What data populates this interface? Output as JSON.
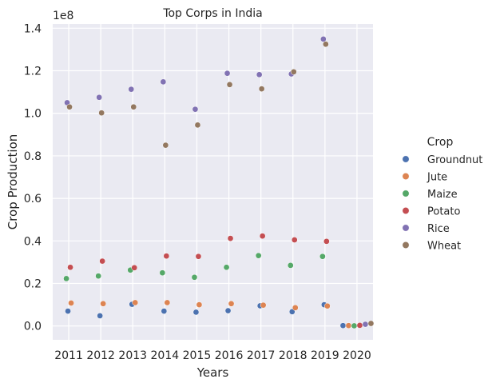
{
  "chart_data": {
    "type": "scatter",
    "title": "Top Corps in India",
    "xlabel": "Years",
    "ylabel": "Crop Production",
    "offset_label": "1e8",
    "categories": [
      "2011",
      "2012",
      "2013",
      "2014",
      "2015",
      "2016",
      "2017",
      "2018",
      "2019",
      "2020"
    ],
    "ylim": [
      -6500000,
      142000000
    ],
    "yticks": [
      0,
      20000000,
      40000000,
      60000000,
      80000000,
      100000000,
      120000000,
      140000000
    ],
    "ytick_labels": [
      "0.0",
      "0.2",
      "0.4",
      "0.6",
      "0.8",
      "1.0",
      "1.2",
      "1.4"
    ],
    "grid": true,
    "legend_title": "Crop",
    "legend_position": "right",
    "series": [
      {
        "name": "Groundnut",
        "color": "#4c72b0",
        "points": [
          {
            "x": "2011",
            "y": 7000000
          },
          {
            "x": "2012",
            "y": 4800000
          },
          {
            "x": "2013",
            "y": 10200000
          },
          {
            "x": "2014",
            "y": 7000000
          },
          {
            "x": "2015",
            "y": 6500000
          },
          {
            "x": "2016",
            "y": 7200000
          },
          {
            "x": "2017",
            "y": 9500000
          },
          {
            "x": "2018",
            "y": 6700000
          },
          {
            "x": "2019",
            "y": 10000000
          },
          {
            "x": "2020",
            "y": 200000
          }
        ]
      },
      {
        "name": "Jute",
        "color": "#dd8452",
        "points": [
          {
            "x": "2011",
            "y": 10800000
          },
          {
            "x": "2012",
            "y": 10500000
          },
          {
            "x": "2013",
            "y": 11000000
          },
          {
            "x": "2014",
            "y": 11000000
          },
          {
            "x": "2015",
            "y": 10000000
          },
          {
            "x": "2016",
            "y": 10500000
          },
          {
            "x": "2017",
            "y": 9800000
          },
          {
            "x": "2018",
            "y": 8600000
          },
          {
            "x": "2019",
            "y": 9400000
          },
          {
            "x": "2020",
            "y": 200000
          }
        ]
      },
      {
        "name": "Maize",
        "color": "#55a868",
        "points": [
          {
            "x": "2011",
            "y": 22300000
          },
          {
            "x": "2012",
            "y": 23500000
          },
          {
            "x": "2013",
            "y": 26300000
          },
          {
            "x": "2014",
            "y": 25000000
          },
          {
            "x": "2015",
            "y": 22900000
          },
          {
            "x": "2016",
            "y": 27600000
          },
          {
            "x": "2017",
            "y": 33100000
          },
          {
            "x": "2018",
            "y": 28500000
          },
          {
            "x": "2019",
            "y": 32700000
          },
          {
            "x": "2020",
            "y": 100000
          }
        ]
      },
      {
        "name": "Potato",
        "color": "#c44e52",
        "points": [
          {
            "x": "2011",
            "y": 27600000
          },
          {
            "x": "2012",
            "y": 30500000
          },
          {
            "x": "2013",
            "y": 27400000
          },
          {
            "x": "2014",
            "y": 32900000
          },
          {
            "x": "2015",
            "y": 32700000
          },
          {
            "x": "2016",
            "y": 41200000
          },
          {
            "x": "2017",
            "y": 42300000
          },
          {
            "x": "2018",
            "y": 40500000
          },
          {
            "x": "2019",
            "y": 39800000
          },
          {
            "x": "2020",
            "y": 300000
          }
        ]
      },
      {
        "name": "Rice",
        "color": "#8172b3",
        "points": [
          {
            "x": "2011",
            "y": 105000000
          },
          {
            "x": "2012",
            "y": 107500000
          },
          {
            "x": "2013",
            "y": 111300000
          },
          {
            "x": "2014",
            "y": 114800000
          },
          {
            "x": "2015",
            "y": 101900000
          },
          {
            "x": "2016",
            "y": 118800000
          },
          {
            "x": "2017",
            "y": 118200000
          },
          {
            "x": "2018",
            "y": 118500000
          },
          {
            "x": "2019",
            "y": 134900000
          },
          {
            "x": "2020",
            "y": 800000
          }
        ]
      },
      {
        "name": "Wheat",
        "color": "#937860",
        "points": [
          {
            "x": "2011",
            "y": 103000000
          },
          {
            "x": "2012",
            "y": 100200000
          },
          {
            "x": "2013",
            "y": 103000000
          },
          {
            "x": "2014",
            "y": 85000000
          },
          {
            "x": "2015",
            "y": 94500000
          },
          {
            "x": "2016",
            "y": 113500000
          },
          {
            "x": "2017",
            "y": 111500000
          },
          {
            "x": "2018",
            "y": 119500000
          },
          {
            "x": "2019",
            "y": 132500000
          },
          {
            "x": "2020",
            "y": 1200000
          }
        ]
      }
    ]
  }
}
